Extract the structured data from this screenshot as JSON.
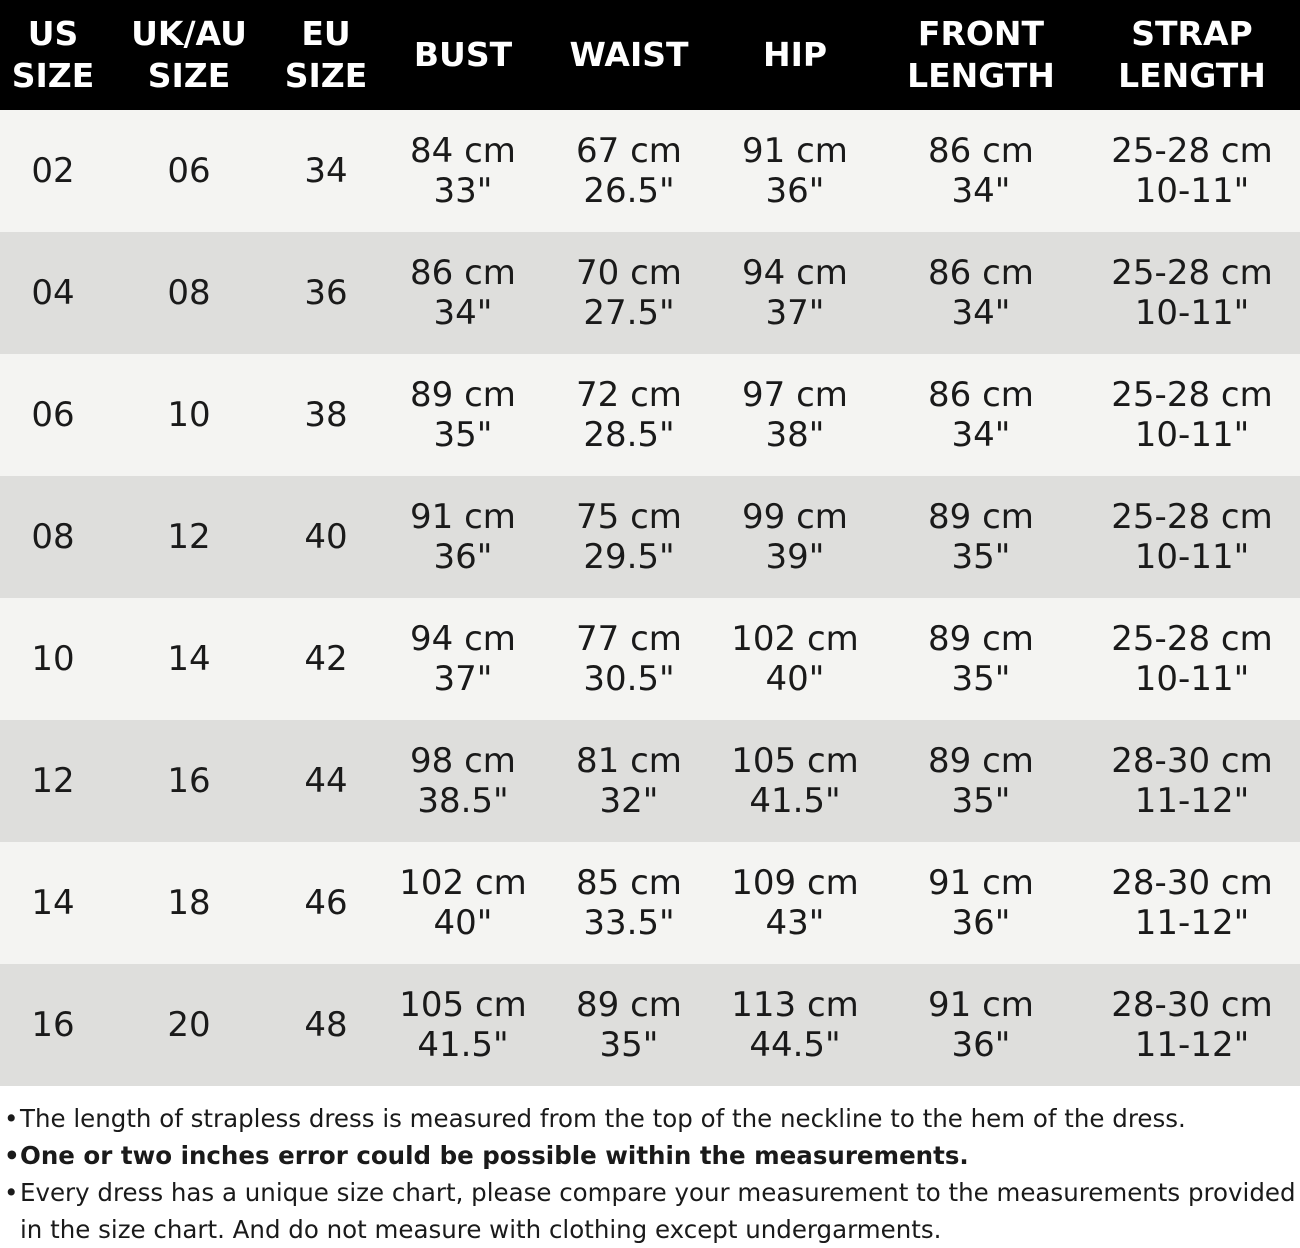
{
  "table": {
    "headers": [
      "US\nSIZE",
      "UK/AU\nSIZE",
      "EU\nSIZE",
      "BUST",
      "WAIST",
      "HIP",
      "FRONT\nLENGTH",
      "STRAP\nLENGTH"
    ],
    "rows": [
      [
        "02",
        "06",
        "34",
        "84 cm\n33\"",
        "67 cm\n26.5\"",
        "91 cm\n36\"",
        "86 cm\n34\"",
        "25-28 cm\n10-11\""
      ],
      [
        "04",
        "08",
        "36",
        "86 cm\n34\"",
        "70 cm\n27.5\"",
        "94 cm\n37\"",
        "86 cm\n34\"",
        "25-28 cm\n10-11\""
      ],
      [
        "06",
        "10",
        "38",
        "89 cm\n35\"",
        "72 cm\n28.5\"",
        "97 cm\n38\"",
        "86 cm\n34\"",
        "25-28 cm\n10-11\""
      ],
      [
        "08",
        "12",
        "40",
        "91 cm\n36\"",
        "75 cm\n29.5\"",
        "99 cm\n39\"",
        "89 cm\n35\"",
        "25-28 cm\n10-11\""
      ],
      [
        "10",
        "14",
        "42",
        "94 cm\n37\"",
        "77 cm\n30.5\"",
        "102 cm\n40\"",
        "89 cm\n35\"",
        "25-28 cm\n10-11\""
      ],
      [
        "12",
        "16",
        "44",
        "98 cm\n38.5\"",
        "81 cm\n32\"",
        "105 cm\n41.5\"",
        "89 cm\n35\"",
        "28-30 cm\n11-12\""
      ],
      [
        "14",
        "18",
        "46",
        "102 cm\n40\"",
        "85 cm\n33.5\"",
        "109 cm\n43\"",
        "91 cm\n36\"",
        "28-30 cm\n11-12\""
      ],
      [
        "16",
        "20",
        "48",
        "105 cm\n41.5\"",
        "89 cm\n35\"",
        "113 cm\n44.5\"",
        "91 cm\n36\"",
        "28-30 cm\n11-12\""
      ]
    ]
  },
  "notes": {
    "bullet": "•",
    "items": [
      "The length of strapless dress is measured from the top of the neckline to the hem of the dress.",
      "One or two inches error could be possible within the measurements.",
      "Every dress has a unique size chart, please compare your measurement to the measurements provided in the size chart. And do not measure with clothing except undergarments."
    ]
  }
}
